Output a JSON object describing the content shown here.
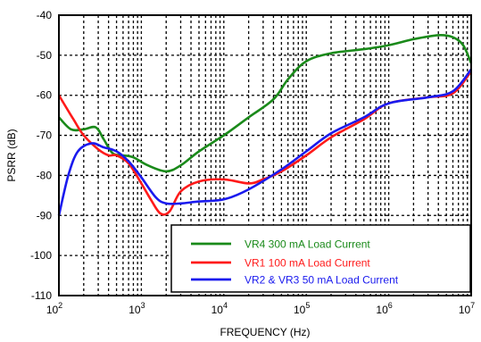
{
  "chart_data": {
    "type": "line",
    "xlabel": "FREQUENCY (Hz)",
    "ylabel": "PSRR (dB)",
    "x_scale": "log",
    "xlim": [
      100,
      10000000
    ],
    "ylim": [
      -110,
      -40
    ],
    "x_ticks": [
      {
        "value": 100,
        "base": "10",
        "exp": "2"
      },
      {
        "value": 1000,
        "base": "10",
        "exp": "3"
      },
      {
        "value": 10000,
        "base": "10",
        "exp": "4"
      },
      {
        "value": 100000,
        "base": "10",
        "exp": "5"
      },
      {
        "value": 1000000,
        "base": "10",
        "exp": "6"
      },
      {
        "value": 10000000,
        "base": "10",
        "exp": "7"
      }
    ],
    "y_ticks": [
      "-40",
      "-50",
      "-60",
      "-70",
      "-80",
      "-90",
      "-100",
      "-110"
    ],
    "grid": true,
    "legend_position": "bottom-right",
    "series": [
      {
        "name": "VR4 300 mA Load Current",
        "color": "#1a8a1a",
        "points": [
          [
            100,
            -65.5
          ],
          [
            140,
            -68.5
          ],
          [
            200,
            -68.5
          ],
          [
            280,
            -68
          ],
          [
            350,
            -71
          ],
          [
            450,
            -74.5
          ],
          [
            600,
            -75
          ],
          [
            800,
            -75.5
          ],
          [
            1200,
            -77.5
          ],
          [
            2000,
            -79
          ],
          [
            3000,
            -77.5
          ],
          [
            5000,
            -74
          ],
          [
            10000,
            -70
          ],
          [
            20000,
            -65.5
          ],
          [
            40000,
            -61
          ],
          [
            60000,
            -56
          ],
          [
            100000,
            -51.5
          ],
          [
            200000,
            -49.5
          ],
          [
            500000,
            -48.5
          ],
          [
            1000000,
            -47.5
          ],
          [
            2000000,
            -46
          ],
          [
            4000000,
            -45
          ],
          [
            6000000,
            -45.5
          ],
          [
            8000000,
            -47.5
          ],
          [
            10000000,
            -52
          ]
        ]
      },
      {
        "name": "VR1 100 mA Load Current",
        "color": "#ff1a1a",
        "points": [
          [
            100,
            -60
          ],
          [
            150,
            -66
          ],
          [
            200,
            -70
          ],
          [
            300,
            -73.5
          ],
          [
            400,
            -75
          ],
          [
            500,
            -75
          ],
          [
            700,
            -77
          ],
          [
            1000,
            -82
          ],
          [
            1300,
            -86
          ],
          [
            1700,
            -89.5
          ],
          [
            2200,
            -89
          ],
          [
            3000,
            -84
          ],
          [
            5000,
            -81.5
          ],
          [
            10000,
            -81
          ],
          [
            20000,
            -82
          ],
          [
            30000,
            -81
          ],
          [
            50000,
            -79
          ],
          [
            100000,
            -75
          ],
          [
            200000,
            -70.5
          ],
          [
            500000,
            -66
          ],
          [
            1000000,
            -62
          ],
          [
            3000000,
            -60.5
          ],
          [
            6000000,
            -59.5
          ],
          [
            10000000,
            -54
          ]
        ]
      },
      {
        "name": "VR2 & VR3 50 mA Load Current",
        "color": "#1a1aee",
        "points": [
          [
            100,
            -90
          ],
          [
            130,
            -80
          ],
          [
            170,
            -74
          ],
          [
            250,
            -72
          ],
          [
            350,
            -73
          ],
          [
            500,
            -74
          ],
          [
            700,
            -76.5
          ],
          [
            1000,
            -80.5
          ],
          [
            1500,
            -85.5
          ],
          [
            2000,
            -87
          ],
          [
            3000,
            -87
          ],
          [
            5000,
            -86.5
          ],
          [
            10000,
            -86
          ],
          [
            20000,
            -83.5
          ],
          [
            50000,
            -78.5
          ],
          [
            100000,
            -74
          ],
          [
            200000,
            -69.5
          ],
          [
            500000,
            -65.5
          ],
          [
            1000000,
            -62
          ],
          [
            3000000,
            -60.5
          ],
          [
            6000000,
            -59
          ],
          [
            10000000,
            -53.5
          ]
        ]
      }
    ]
  }
}
